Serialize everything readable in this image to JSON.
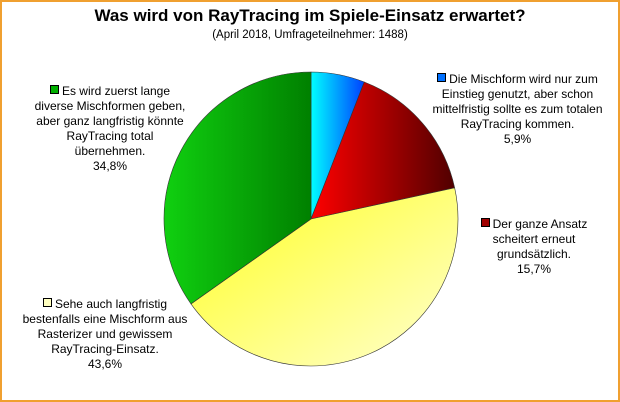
{
  "chart_data": {
    "type": "pie",
    "title": "Was wird von RayTracing im Spiele-Einsatz erwartet?",
    "subtitle": "(April 2018, Umfrageteilnehmer: 1488)",
    "slices": [
      {
        "label": "Die Mischform wird nur zum Einstieg genutzt, aber schon mittelfristig sollte es zum totalen RayTracing kommen.",
        "value": 5.9,
        "value_label": "5,9%",
        "color": "#00e0ff",
        "swatch": "#0070ff"
      },
      {
        "label": "Der ganze Ansatz scheitert erneut grundsätzlich.",
        "value": 15.7,
        "value_label": "15,7%",
        "color": "#e00000",
        "swatch": "#a00000"
      },
      {
        "label": "Sehe auch langfristig bestenfalls eine Mischform aus Rasterizer und gewissem RayTracing-Einsatz.",
        "value": 43.6,
        "value_label": "43,6%",
        "color": "#ffff40",
        "swatch": "#ffffc0"
      },
      {
        "label": "Es wird zuerst lange diverse Mischformen geben, aber ganz langfristig könnte RayTracing total übernehmen.",
        "value": 34.8,
        "value_label": "34,8%",
        "color": "#20c020",
        "swatch": "#00b000"
      }
    ]
  }
}
